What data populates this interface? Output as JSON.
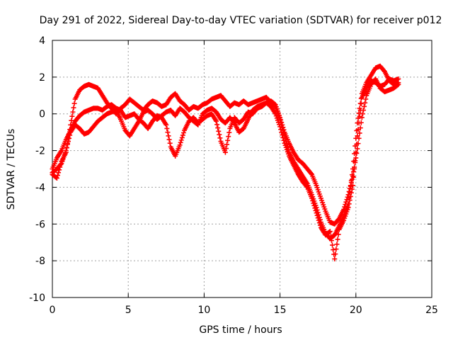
{
  "chart_data": {
    "type": "scatter",
    "title": "Day 291 of 2022, Sidereal Day-to-day VTEC variation (SDTVAR) for receiver p012",
    "xlabel": "GPS time / hours",
    "ylabel": "SDTVAR / TECUs",
    "xlim": [
      0,
      25
    ],
    "ylim": [
      -10,
      4
    ],
    "xticks": [
      0,
      5,
      10,
      15,
      20,
      25
    ],
    "yticks": [
      -10,
      -8,
      -6,
      -4,
      -2,
      0,
      2,
      4
    ],
    "xtick_labels": [
      "0",
      "5",
      "10",
      "15",
      "20",
      "25"
    ],
    "ytick_labels": [
      "-10",
      "-8",
      "-6",
      "-4",
      "-2",
      "0",
      "2",
      "4"
    ],
    "grid": true,
    "marker": "+",
    "series": [
      {
        "name": "track-a",
        "color": "#ff0000",
        "x": [
          0.0,
          0.3,
          0.6,
          0.9,
          1.2,
          1.5,
          1.8,
          2.1,
          2.4,
          2.7,
          3.0,
          3.3,
          3.6,
          3.9,
          4.2,
          4.5,
          4.8,
          5.1,
          5.4,
          5.7,
          6.0,
          6.3,
          6.6,
          6.9,
          7.2,
          7.5,
          7.8,
          8.1,
          8.4,
          8.7,
          9.0,
          9.3,
          9.6,
          9.9,
          10.2,
          10.5,
          10.8,
          11.1,
          11.4,
          11.7,
          12.0,
          12.3,
          12.6,
          12.9,
          13.2,
          13.5,
          13.8,
          14.1,
          14.4,
          14.7,
          15.0,
          15.3,
          15.6,
          15.9,
          16.2,
          16.5,
          16.8,
          17.1,
          17.4,
          17.7,
          18.0,
          18.3,
          18.6,
          18.9,
          19.2,
          19.5,
          19.8,
          20.1,
          20.4,
          20.7,
          21.0,
          21.3,
          21.6,
          21.9,
          22.2,
          22.5,
          22.8
        ],
        "y": [
          -3.3,
          -3.5,
          -2.6,
          -2.1,
          -0.6,
          0.8,
          1.3,
          1.5,
          1.6,
          1.5,
          1.4,
          1.0,
          0.6,
          0.3,
          0.0,
          0.3,
          0.5,
          0.8,
          0.6,
          0.4,
          0.2,
          0.5,
          0.7,
          0.6,
          0.4,
          0.5,
          0.9,
          1.1,
          0.7,
          0.5,
          0.2,
          0.4,
          0.3,
          0.5,
          0.6,
          0.8,
          0.9,
          1.0,
          0.7,
          0.4,
          0.6,
          0.5,
          0.7,
          0.5,
          0.6,
          0.7,
          0.8,
          0.9,
          0.6,
          0.4,
          -0.3,
          -1.2,
          -2.1,
          -2.6,
          -3.0,
          -3.4,
          -3.8,
          -4.4,
          -5.1,
          -5.9,
          -6.5,
          -6.8,
          -6.6,
          -6.1,
          -5.6,
          -4.9,
          -3.0,
          -0.5,
          1.1,
          1.7,
          2.1,
          2.5,
          2.6,
          2.3,
          1.8,
          1.6,
          1.7
        ]
      },
      {
        "name": "track-b",
        "color": "#ff0000",
        "x": [
          0.0,
          0.3,
          0.6,
          0.9,
          1.2,
          1.5,
          1.8,
          2.1,
          2.4,
          2.7,
          3.0,
          3.3,
          3.6,
          3.9,
          4.2,
          4.5,
          4.8,
          5.1,
          5.4,
          5.7,
          6.0,
          6.3,
          6.6,
          6.9,
          7.2,
          7.5,
          7.8,
          8.1,
          8.4,
          8.7,
          9.0,
          9.3,
          9.6,
          9.9,
          10.2,
          10.5,
          10.8,
          11.1,
          11.4,
          11.7,
          12.0,
          12.3,
          12.6,
          12.9,
          13.2,
          13.5,
          13.8,
          14.1,
          14.4,
          14.7,
          15.0,
          15.3,
          15.6,
          15.9,
          16.2,
          16.5,
          16.8,
          17.1,
          17.4,
          17.7,
          18.0,
          18.3,
          18.6,
          18.9,
          19.2,
          19.5,
          19.8,
          20.1,
          20.4,
          20.7,
          21.0,
          21.3,
          21.6,
          21.9,
          22.2,
          22.5,
          22.8
        ],
        "y": [
          -3.0,
          -2.4,
          -2.0,
          -1.4,
          -0.9,
          -0.4,
          -0.1,
          0.1,
          0.2,
          0.3,
          0.3,
          0.2,
          0.4,
          0.5,
          0.3,
          0.2,
          -0.2,
          -0.1,
          0.0,
          -0.3,
          -0.5,
          -0.8,
          -0.4,
          -0.1,
          -0.2,
          -0.6,
          -1.8,
          -2.3,
          -1.7,
          -0.9,
          -0.4,
          -0.2,
          -0.5,
          -0.3,
          -0.1,
          0.0,
          -0.4,
          -1.5,
          -2.1,
          -0.8,
          -0.2,
          -0.5,
          -0.3,
          0.1,
          0.0,
          0.3,
          0.4,
          0.6,
          0.7,
          0.5,
          -0.2,
          -1.0,
          -1.6,
          -2.1,
          -2.5,
          -2.7,
          -3.0,
          -3.3,
          -3.9,
          -4.6,
          -5.3,
          -5.9,
          -6.0,
          -5.7,
          -5.2,
          -4.4,
          -3.4,
          -1.9,
          -0.2,
          1.0,
          1.6,
          1.9,
          1.4,
          1.2,
          1.3,
          1.4,
          1.6
        ]
      },
      {
        "name": "track-c",
        "color": "#ff0000",
        "x": [
          0.0,
          0.3,
          0.6,
          0.9,
          1.2,
          1.5,
          1.8,
          2.1,
          2.4,
          2.7,
          3.0,
          3.3,
          3.6,
          3.9,
          4.2,
          4.5,
          4.8,
          5.1,
          5.4,
          5.7,
          6.0,
          6.3,
          6.6,
          6.9,
          7.2,
          7.5,
          7.8,
          8.1,
          8.4,
          8.7,
          9.0,
          9.3,
          9.6,
          9.9,
          10.2,
          10.5,
          10.8,
          11.1,
          11.4,
          11.7,
          12.0,
          12.3,
          12.6,
          12.9,
          13.2,
          13.5,
          13.8,
          14.1,
          14.4,
          14.7,
          15.0,
          15.3,
          15.6,
          15.9,
          16.2,
          16.5,
          16.8,
          17.1,
          17.4,
          17.7,
          18.0,
          18.3,
          18.6,
          18.9,
          19.2,
          19.5,
          19.8,
          20.1,
          20.4,
          20.7,
          21.0,
          21.3,
          21.6,
          21.9,
          22.2,
          22.5,
          22.8
        ],
        "y": [
          -3.2,
          -3.0,
          -2.7,
          -2.0,
          -1.0,
          -0.6,
          -0.8,
          -1.1,
          -1.0,
          -0.7,
          -0.4,
          -0.2,
          0.0,
          0.1,
          0.2,
          -0.3,
          -0.9,
          -1.2,
          -0.8,
          -0.4,
          0.1,
          0.2,
          0.0,
          -0.3,
          -0.1,
          0.1,
          0.2,
          -0.1,
          0.3,
          0.1,
          -0.2,
          -0.4,
          -0.6,
          0.0,
          0.2,
          0.3,
          0.1,
          -0.3,
          -0.5,
          -0.2,
          -0.5,
          -1.0,
          -0.8,
          -0.3,
          0.2,
          0.4,
          0.5,
          0.6,
          0.4,
          0.0,
          -0.7,
          -1.6,
          -2.3,
          -2.8,
          -3.3,
          -3.7,
          -4.0,
          -4.6,
          -5.4,
          -6.2,
          -6.6,
          -6.4,
          -7.9,
          -6.3,
          -5.8,
          -5.1,
          -3.9,
          -1.2,
          0.9,
          1.4,
          1.8,
          1.7,
          1.5,
          1.6,
          1.9,
          1.8,
          1.9
        ]
      }
    ]
  }
}
